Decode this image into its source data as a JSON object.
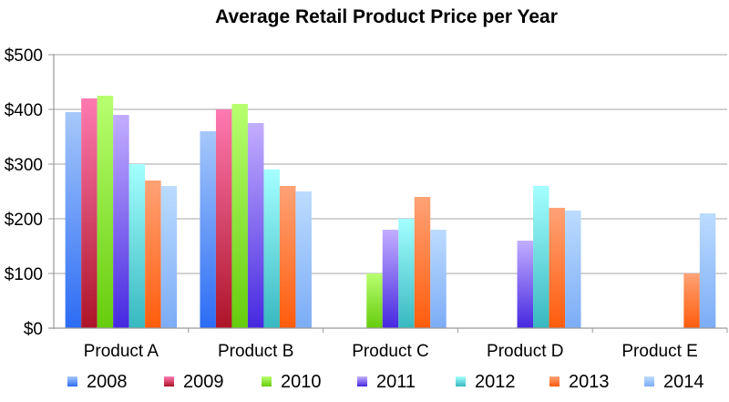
{
  "chart_data": {
    "type": "bar",
    "title": "Average Retail Product Price per Year",
    "xlabel": "",
    "ylabel": "",
    "categories": [
      "Product A",
      "Product B",
      "Product C",
      "Product D",
      "Product E"
    ],
    "ylim": [
      0,
      500
    ],
    "yticks": [
      0,
      100,
      200,
      300,
      400,
      500
    ],
    "ytick_labels": [
      "$0",
      "$100",
      "$200",
      "$300",
      "$400",
      "$500"
    ],
    "grid": true,
    "legend_position": "bottom",
    "series": [
      {
        "name": "2008",
        "values": [
          395,
          360,
          0,
          0,
          0
        ],
        "color_top": "#a6c8fa",
        "color_bottom": "#2c6cf4"
      },
      {
        "name": "2009",
        "values": [
          420,
          400,
          0,
          0,
          0
        ],
        "color_top": "#ff7ab0",
        "color_bottom": "#ad1428"
      },
      {
        "name": "2010",
        "values": [
          425,
          410,
          100,
          0,
          0
        ],
        "color_top": "#b8ff70",
        "color_bottom": "#66cc0c"
      },
      {
        "name": "2011",
        "values": [
          390,
          375,
          180,
          160,
          0
        ],
        "color_top": "#c2aeff",
        "color_bottom": "#4628e0"
      },
      {
        "name": "2012",
        "values": [
          300,
          290,
          200,
          260,
          0
        ],
        "color_top": "#a4ffff",
        "color_bottom": "#38b8c0"
      },
      {
        "name": "2013",
        "values": [
          270,
          260,
          240,
          220,
          100
        ],
        "color_top": "#ffa276",
        "color_bottom": "#ff5c0c"
      },
      {
        "name": "2014",
        "values": [
          260,
          250,
          180,
          215,
          210
        ],
        "color_top": "#bcdcff",
        "color_bottom": "#7cacf6"
      }
    ]
  }
}
